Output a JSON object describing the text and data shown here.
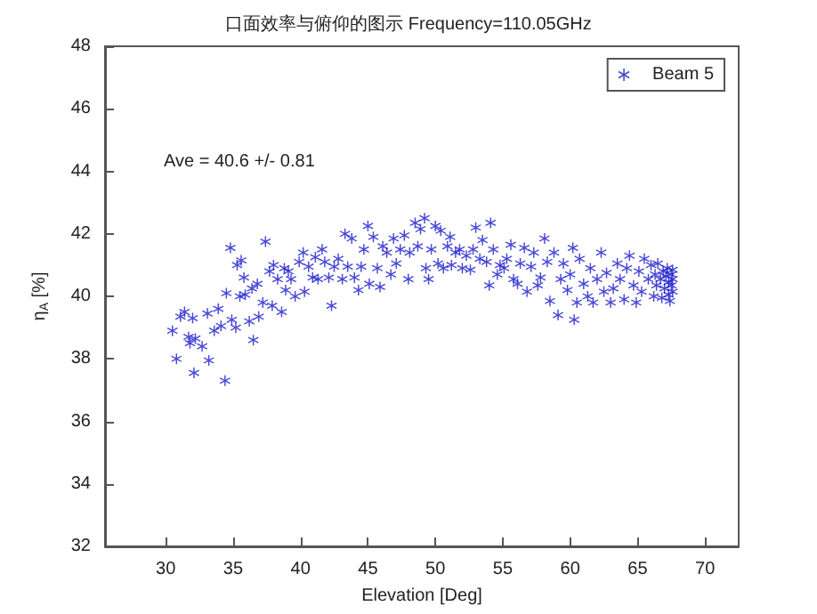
{
  "chart_data": {
    "type": "scatter",
    "title": "口面效率与俯仰的图示 Frequency=110.05GHz",
    "xlabel": "Elevation [Deg]",
    "ylabel": "η$_{A}$ [%]",
    "annotations": [
      "Ave = 40.6 +/- 0.81"
    ],
    "xlim": [
      25.5,
      72.5
    ],
    "xticks": [
      30,
      35,
      40,
      45,
      50,
      55,
      60,
      65,
      70
    ],
    "ylim": [
      32,
      48
    ],
    "yticks": [
      32,
      34,
      36,
      38,
      40,
      42,
      44,
      46,
      48
    ],
    "grid": false,
    "legend": "top right",
    "marker": "star",
    "series": [
      {
        "name": "Beam 5",
        "color": "#1a1acc",
        "x": [
          30.5,
          30.8,
          31.1,
          31.4,
          31.7,
          31.8,
          32.0,
          32.1,
          32.2,
          32.7,
          33.1,
          33.2,
          33.6,
          33.9,
          34.1,
          34.4,
          34.5,
          34.8,
          34.9,
          35.2,
          35.3,
          35.5,
          35.6,
          35.8,
          35.9,
          36.2,
          36.4,
          36.5,
          36.8,
          36.9,
          37.2,
          37.4,
          37.7,
          37.9,
          38.0,
          38.3,
          38.6,
          38.8,
          38.9,
          39.1,
          39.3,
          39.6,
          39.9,
          40.2,
          40.3,
          40.6,
          40.9,
          41.1,
          41.3,
          41.6,
          41.8,
          42.1,
          42.3,
          42.5,
          42.8,
          43.1,
          43.3,
          43.5,
          43.8,
          44.0,
          44.3,
          44.5,
          44.7,
          45.0,
          45.1,
          45.4,
          45.7,
          45.9,
          46.1,
          46.4,
          46.7,
          46.9,
          47.1,
          47.4,
          47.7,
          48.0,
          48.1,
          48.5,
          48.7,
          48.9,
          49.2,
          49.3,
          49.5,
          49.7,
          50.0,
          50.2,
          50.4,
          50.6,
          50.9,
          51.1,
          51.2,
          51.5,
          51.8,
          52.0,
          52.3,
          52.6,
          52.8,
          53.0,
          53.3,
          53.5,
          53.8,
          54.0,
          54.1,
          54.3,
          54.6,
          54.8,
          55.1,
          55.3,
          55.6,
          55.8,
          56.1,
          56.3,
          56.6,
          56.8,
          57.1,
          57.3,
          57.6,
          57.8,
          58.1,
          58.3,
          58.5,
          58.8,
          59.1,
          59.3,
          59.5,
          59.8,
          60.0,
          60.2,
          60.3,
          60.5,
          60.7,
          61.0,
          61.3,
          61.5,
          61.7,
          62.0,
          62.3,
          62.5,
          62.7,
          63.0,
          63.2,
          63.5,
          63.7,
          64.0,
          64.2,
          64.4,
          64.7,
          64.9,
          65.1,
          65.3,
          65.5,
          65.8,
          66.0,
          66.2,
          66.3,
          66.4,
          66.5,
          66.7,
          66.8,
          66.9,
          67.0,
          67.1,
          67.2,
          67.3,
          67.3,
          67.4,
          67.5,
          67.5,
          67.6,
          67.6,
          67.6
        ],
        "values": [
          38.9,
          38.0,
          39.35,
          39.5,
          38.7,
          38.5,
          39.3,
          37.55,
          38.65,
          38.4,
          39.45,
          37.95,
          38.9,
          39.6,
          39.05,
          37.3,
          40.1,
          41.55,
          39.25,
          39.0,
          41.0,
          40.0,
          41.15,
          40.6,
          40.05,
          39.2,
          40.25,
          38.6,
          40.4,
          39.35,
          39.8,
          41.75,
          40.8,
          39.7,
          41.0,
          40.55,
          39.5,
          40.9,
          40.2,
          40.8,
          40.55,
          40.0,
          41.1,
          41.4,
          40.15,
          40.95,
          40.6,
          41.25,
          40.55,
          41.5,
          41.1,
          40.6,
          39.7,
          40.95,
          41.2,
          40.55,
          42.0,
          40.95,
          41.85,
          40.6,
          40.2,
          40.95,
          41.5,
          42.25,
          40.4,
          41.9,
          40.9,
          40.3,
          41.6,
          41.4,
          40.7,
          41.85,
          41.05,
          41.5,
          41.95,
          40.55,
          41.4,
          42.35,
          41.6,
          42.15,
          42.5,
          40.9,
          40.55,
          41.5,
          42.25,
          41.05,
          42.1,
          40.9,
          41.6,
          41.9,
          41.0,
          41.4,
          41.5,
          40.9,
          41.3,
          40.85,
          41.5,
          42.2,
          41.2,
          41.8,
          41.1,
          40.35,
          42.35,
          41.5,
          40.7,
          41.0,
          40.9,
          41.2,
          41.65,
          40.55,
          40.4,
          41.05,
          41.55,
          40.15,
          40.95,
          41.4,
          40.35,
          40.6,
          41.85,
          41.1,
          39.85,
          41.4,
          39.4,
          40.55,
          41.05,
          40.2,
          40.7,
          41.55,
          39.25,
          39.8,
          41.2,
          40.4,
          40.0,
          40.9,
          39.8,
          40.55,
          41.4,
          40.15,
          40.75,
          39.8,
          40.25,
          41.05,
          40.55,
          39.9,
          40.9,
          41.3,
          40.35,
          39.8,
          40.8,
          40.15,
          41.2,
          40.55,
          41.0,
          40.0,
          40.7,
          40.35,
          41.05,
          40.55,
          39.95,
          40.8,
          40.25,
          40.65,
          40.9,
          40.45,
          40.05,
          39.85,
          40.7,
          40.35,
          40.55,
          40.85,
          40.15
        ]
      }
    ]
  }
}
